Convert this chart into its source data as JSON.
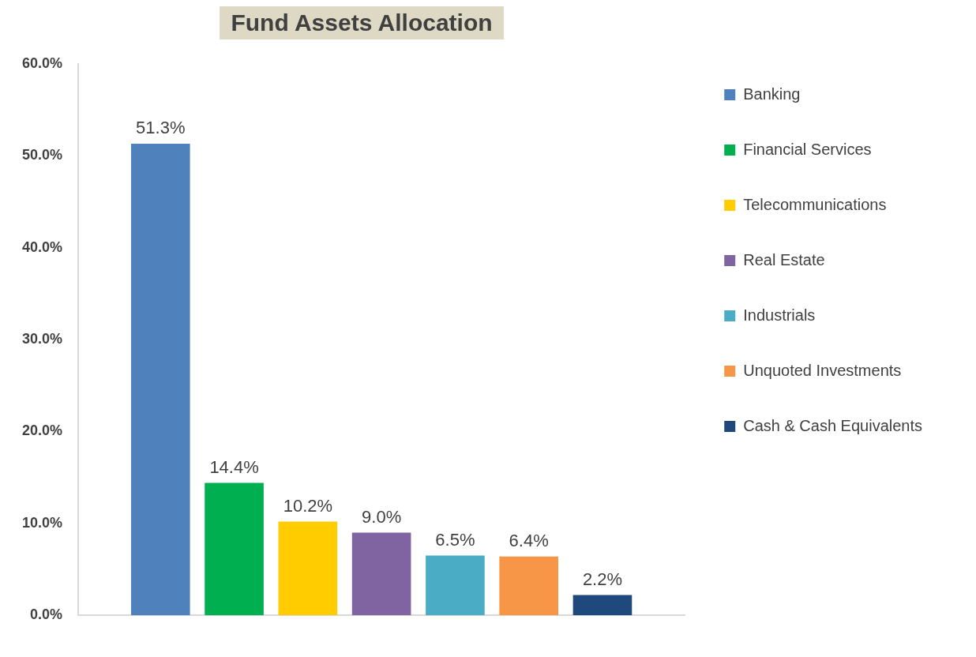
{
  "chart_data": {
    "type": "bar",
    "title": "Fund Assets Allocation",
    "categories": [
      null
    ],
    "series": [
      {
        "name": "Banking",
        "color": "#4f81bd",
        "values": [
          51.3
        ],
        "value_labels": [
          "51.3%"
        ]
      },
      {
        "name": "Financial Services",
        "color": "#00b050",
        "values": [
          14.4
        ],
        "value_labels": [
          "14.4%"
        ]
      },
      {
        "name": "Telecommunications",
        "color": "#ffcc00",
        "values": [
          10.2
        ],
        "value_labels": [
          "10.2%"
        ]
      },
      {
        "name": "Real Estate",
        "color": "#8064a2",
        "values": [
          9.0
        ],
        "value_labels": [
          "9.0%"
        ]
      },
      {
        "name": "Industrials",
        "color": "#4bacc6",
        "values": [
          6.5
        ],
        "value_labels": [
          "6.5%"
        ]
      },
      {
        "name": "Unquoted Investments",
        "color": "#f79646",
        "values": [
          6.4
        ],
        "value_labels": [
          "6.4%"
        ]
      },
      {
        "name": "Cash & Cash Equivalents",
        "color": "#1f497d",
        "values": [
          2.2
        ],
        "value_labels": [
          "2.2%"
        ]
      }
    ],
    "ylim": [
      0,
      60
    ],
    "yticks": [
      {
        "value": 0,
        "label": "0.0%"
      },
      {
        "value": 10,
        "label": "10.0%"
      },
      {
        "value": 20,
        "label": "20.0%"
      },
      {
        "value": 30,
        "label": "30.0%"
      },
      {
        "value": 40,
        "label": "40.0%"
      },
      {
        "value": 50,
        "label": "50.0%"
      },
      {
        "value": 60,
        "label": "60.0%"
      }
    ],
    "grid": false,
    "legend": "right",
    "tick_labels": "y"
  }
}
